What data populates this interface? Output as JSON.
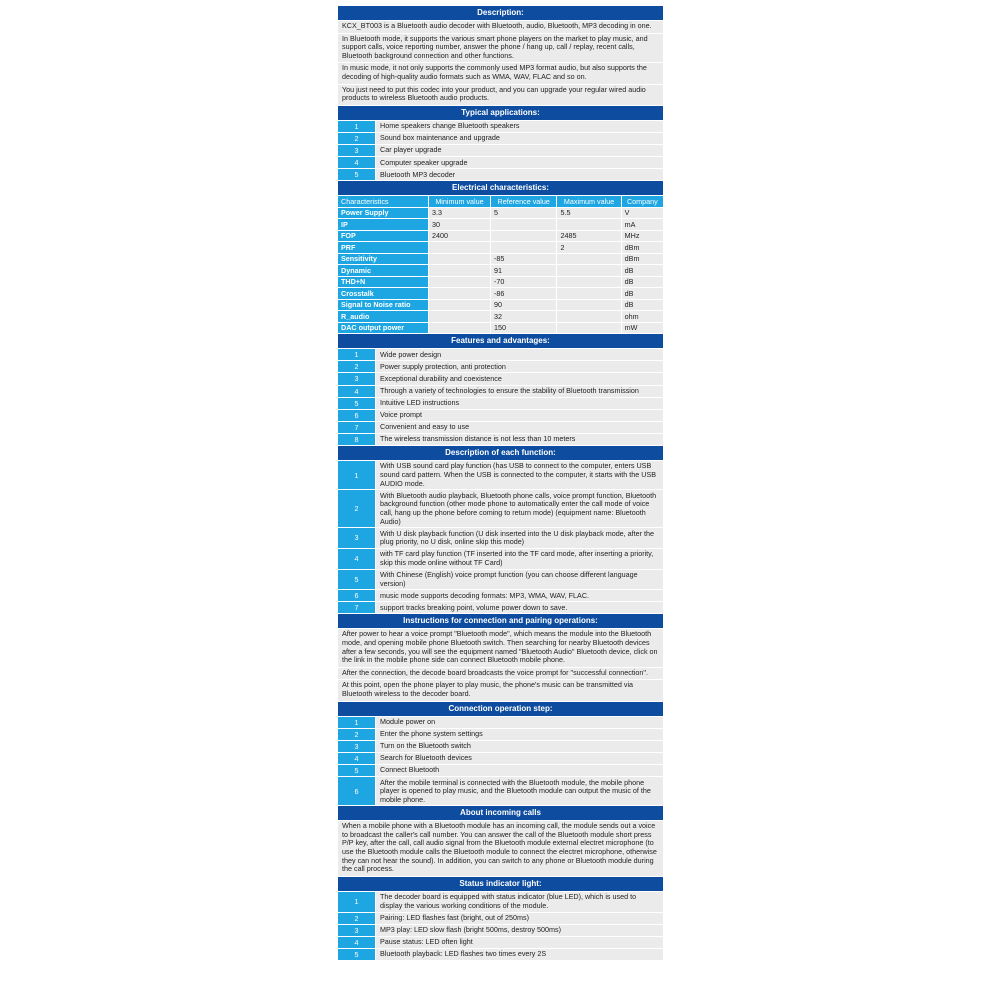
{
  "colors": {
    "header": "#0d4c9e",
    "accent": "#1da6e2",
    "row": "#ebebeb"
  },
  "description": {
    "title": "Description:",
    "paragraphs": [
      "KCX_BT003 is a Bluetooth audio decoder with Bluetooth, audio, Bluetooth, MP3 decoding in one.",
      "In Bluetooth mode, it supports the various smart phone players on the market to play music, and support calls, voice reporting number, answer the phone / hang up, call / replay, recent calls, Bluetooth background connection and other functions.",
      "In music mode, it not only supports the commonly used MP3 format audio, but also supports the decoding of high-quality audio formats such as WMA, WAV, FLAC and so on.",
      "You just need to put this codec into your product, and you can upgrade your regular wired audio products to wireless Bluetooth audio products."
    ]
  },
  "applications": {
    "title": "Typical applications:",
    "items": [
      {
        "n": "1",
        "t": "Home speakers change Bluetooth speakers"
      },
      {
        "n": "2",
        "t": "Sound box maintenance and upgrade"
      },
      {
        "n": "3",
        "t": "Car player upgrade"
      },
      {
        "n": "4",
        "t": "Computer speaker upgrade"
      },
      {
        "n": "5",
        "t": "Bluetooth MP3 decoder"
      }
    ]
  },
  "electrical": {
    "title": "Electrical characteristics:",
    "columns": [
      "Characteristics",
      "Minimum value",
      "Reference value",
      "Maximum value",
      "Company"
    ],
    "rows": [
      [
        "Power Supply",
        "3.3",
        "5",
        "5.5",
        "V"
      ],
      [
        "IP",
        "30",
        "",
        "",
        "mA"
      ],
      [
        "FOP",
        "2400",
        "",
        "2485",
        "MHz"
      ],
      [
        "PRF",
        "",
        "",
        "2",
        "dBm"
      ],
      [
        "Sensitivity",
        "",
        "-85",
        "",
        "dBm"
      ],
      [
        "Dynamic",
        "",
        "91",
        "",
        "dB"
      ],
      [
        "THD+N",
        "",
        "-70",
        "",
        "dB"
      ],
      [
        "Crosstalk",
        "",
        "-86",
        "",
        "dB"
      ],
      [
        "Signal to Noise ratio",
        "",
        "90",
        "",
        "dB"
      ],
      [
        "R_audio",
        "",
        "32",
        "",
        "ohm"
      ],
      [
        "DAC output power",
        "",
        "150",
        "",
        "mW"
      ]
    ]
  },
  "features": {
    "title": "Features and advantages:",
    "items": [
      {
        "n": "1",
        "t": "Wide power design"
      },
      {
        "n": "2",
        "t": "Power supply protection, anti protection"
      },
      {
        "n": "3",
        "t": "Exceptional durability and coexistence"
      },
      {
        "n": "4",
        "t": "Through a variety of technologies to ensure the stability of Bluetooth transmission"
      },
      {
        "n": "5",
        "t": "Intuitive LED instructions"
      },
      {
        "n": "6",
        "t": "Voice prompt"
      },
      {
        "n": "7",
        "t": "Convenient and easy to use"
      },
      {
        "n": "8",
        "t": "The wireless transmission distance is not less than 10 meters"
      }
    ]
  },
  "functions": {
    "title": "Description of each function:",
    "items": [
      {
        "n": "1",
        "t": "With USB sound card play function (has USB to connect to the computer, enters USB sound card pattern. When the USB is connected to the computer, it starts with the USB AUDIO mode."
      },
      {
        "n": "2",
        "t": "With Bluetooth audio playback, Bluetooth phone calls, voice prompt function, Bluetooth background function (other mode phone to automatically enter the call mode of voice call, hang up the phone before coming to return mode) (equipment name: Bluetooth Audio)"
      },
      {
        "n": "3",
        "t": "With U disk playback function (U disk inserted into the U disk playback mode, after the plug priority, no U disk, online skip this mode)"
      },
      {
        "n": "4",
        "t": "with TF card play function (TF inserted into the TF card mode, after inserting a priority, skip this mode online without TF Card)"
      },
      {
        "n": "5",
        "t": "With Chinese (English) voice prompt function (you can choose different language version)"
      },
      {
        "n": "6",
        "t": "music mode supports decoding formats: MP3, WMA, WAV, FLAC."
      },
      {
        "n": "7",
        "t": "support tracks breaking point, volume power down to save."
      }
    ]
  },
  "instructions": {
    "title": "Instructions for connection and pairing operations:",
    "paragraphs": [
      "After power to hear a voice prompt \"Bluetooth mode\", which means the module into the Bluetooth mode, and opening mobile phone Bluetooth switch. Then searching for nearby Bluetooth devices after a few seconds, you will see the equipment named \"Bluetooth Audio\" Bluetooth device, click on the link in the mobile phone side can connect Bluetooth mobile phone.",
      "After the connection, the decode board broadcasts the voice prompt for \"successful connection\".",
      "At this point, open the phone player to play music, the phone's music can be transmitted via Bluetooth wireless to the decoder board."
    ]
  },
  "steps": {
    "title": "Connection operation step:",
    "items": [
      {
        "n": "1",
        "t": "Module power on"
      },
      {
        "n": "2",
        "t": "Enter the phone system settings"
      },
      {
        "n": "3",
        "t": "Turn on the Bluetooth switch"
      },
      {
        "n": "4",
        "t": "Search for Bluetooth devices"
      },
      {
        "n": "5",
        "t": "Connect Bluetooth"
      },
      {
        "n": "6",
        "t": "After the mobile terminal is connected with the Bluetooth module, the mobile phone player is opened to play music, and the Bluetooth module can output the music of the mobile phone."
      }
    ]
  },
  "calls": {
    "title": "About incoming calls",
    "paragraphs": [
      "When a mobile phone with a Bluetooth module has an incoming call, the module sends out a voice to broadcast the caller's call number. You can answer the call of the Bluetooth module short press P/P key, after the call, call audio signal from the Bluetooth module external electret microphone (to use the Bluetooth module calls the Bluetooth module to connect the electret microphone, otherwise they can not hear the sound). In addition, you can switch to any phone or Bluetooth module during the call process."
    ]
  },
  "status": {
    "title": "Status indicator light:",
    "items": [
      {
        "n": "1",
        "t": "The decoder board is equipped with status indicator (blue LED), which is used to display the various working conditions of the module."
      },
      {
        "n": "2",
        "t": "Pairing: LED flashes fast (bright, out of 250ms)"
      },
      {
        "n": "3",
        "t": "MP3 play: LED slow flash (bright 500ms, destroy 500ms)"
      },
      {
        "n": "4",
        "t": "Pause status: LED often light"
      },
      {
        "n": "5",
        "t": "Bluetooth playback: LED flashes two times every 2S"
      }
    ]
  }
}
